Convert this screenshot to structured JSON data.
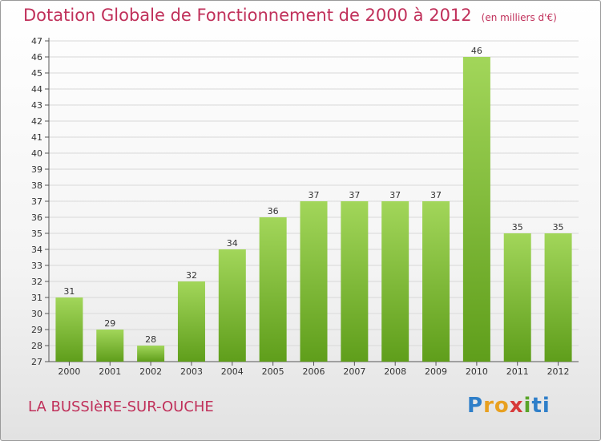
{
  "header": {
    "title": "Dotation Globale de Fonctionnement de 2000 à 2012",
    "unit": "(en milliers d'€)"
  },
  "footer": {
    "commune": "LA BUSSIèRE-SUR-OUCHE",
    "logo": "Proxiti",
    "logo_letters": [
      "P",
      "r",
      "o",
      "x",
      "i",
      "ti"
    ]
  },
  "colors": {
    "bar_light": "#a2d65a",
    "bar_dark": "#5f9e1b",
    "title": "#c0305a",
    "grid": "#d8d8d8"
  },
  "chart_data": {
    "type": "bar",
    "title": "Dotation Globale de Fonctionnement de 2000 à 2012",
    "subtitle": "(en milliers d'€)",
    "xlabel": "",
    "ylabel": "",
    "ylim": [
      27,
      47
    ],
    "yticks": [
      27,
      28,
      29,
      30,
      31,
      32,
      33,
      34,
      35,
      36,
      37,
      38,
      39,
      40,
      41,
      42,
      43,
      44,
      45,
      46,
      47
    ],
    "grid": true,
    "categories": [
      "2000",
      "2001",
      "2002",
      "2003",
      "2004",
      "2005",
      "2006",
      "2007",
      "2008",
      "2009",
      "2010",
      "2011",
      "2012"
    ],
    "values": [
      31,
      29,
      28,
      32,
      34,
      36,
      37,
      37,
      37,
      37,
      46,
      35,
      35
    ]
  }
}
